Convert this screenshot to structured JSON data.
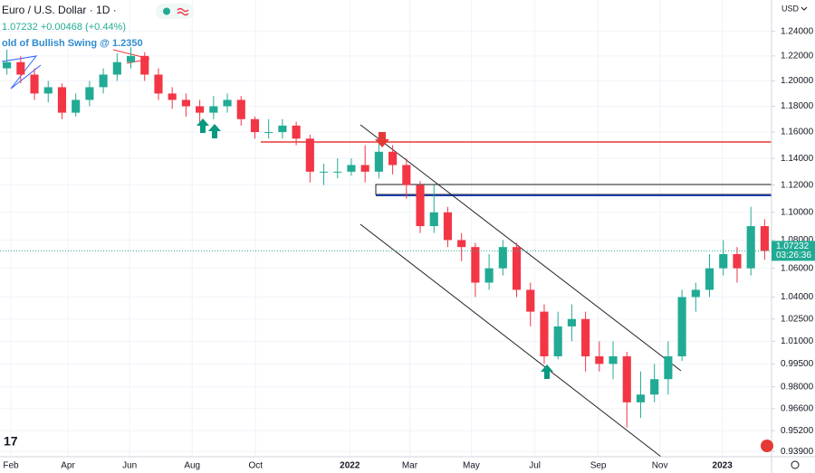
{
  "chart_data": {
    "type": "candlestick",
    "title": "Euro / U.S. Dollar · 1D ·",
    "subtitle": "1.07232 +0.00468 (+0.44%)",
    "indicator": "old of Bullish Swing @ 1.2350",
    "currency": "USD",
    "price_label": "1.07232",
    "countdown": "03:26:36",
    "up_color": "#22ab94",
    "down_color": "#f23645",
    "log_scale": true,
    "grid": true,
    "xlim": [
      0,
      56
    ],
    "xticks": [
      {
        "value": 0.79,
        "label": "Feb"
      },
      {
        "value": 4.93,
        "label": "Apr"
      },
      {
        "value": 9.41,
        "label": "Jun"
      },
      {
        "value": 13.95,
        "label": "Aug"
      },
      {
        "value": 18.55,
        "label": "Oct"
      },
      {
        "value": 25.39,
        "label": "2022"
      },
      {
        "value": 29.74,
        "label": "Mar"
      },
      {
        "value": 34.21,
        "label": "May"
      },
      {
        "value": 38.82,
        "label": "Jul"
      },
      {
        "value": 43.42,
        "label": "Sep"
      },
      {
        "value": 47.89,
        "label": "Nov"
      },
      {
        "value": 52.43,
        "label": "2023"
      }
    ],
    "ylim": [
      0.9357,
      1.266
    ],
    "yticks": [
      {
        "value": 1.24,
        "label": "1.24000"
      },
      {
        "value": 1.22,
        "label": "1.22000"
      },
      {
        "value": 1.2,
        "label": "1.20000"
      },
      {
        "value": 1.18,
        "label": "1.18000"
      },
      {
        "value": 1.16,
        "label": "1.16000"
      },
      {
        "value": 1.14,
        "label": "1.14000"
      },
      {
        "value": 1.12,
        "label": "1.12000"
      },
      {
        "value": 1.1,
        "label": "1.10000"
      },
      {
        "value": 1.08,
        "label": "1.08000"
      },
      {
        "value": 1.06,
        "label": "1.06000"
      },
      {
        "value": 1.04,
        "label": "1.04000"
      },
      {
        "value": 1.025,
        "label": "1.02500"
      },
      {
        "value": 1.01,
        "label": "1.01000"
      },
      {
        "value": 0.995,
        "label": "0.99500"
      },
      {
        "value": 0.98,
        "label": "0.98000"
      },
      {
        "value": 0.966,
        "label": "0.96600"
      },
      {
        "value": 0.952,
        "label": "0.95200"
      },
      {
        "value": 0.939,
        "label": "0.93900"
      }
    ],
    "open": [
      1.21,
      1.215,
      1.205,
      1.19,
      1.195,
      1.175,
      1.185,
      1.195,
      1.205,
      1.215,
      1.22,
      1.205,
      1.19,
      1.185,
      1.18,
      1.175,
      1.18,
      1.185,
      1.17,
      1.16,
      1.16,
      1.165,
      1.155,
      1.13,
      1.13,
      1.13,
      1.135,
      1.13,
      1.145,
      1.135,
      1.12,
      1.09,
      1.1,
      1.08,
      1.075,
      1.05,
      1.06,
      1.075,
      1.045,
      1.03,
      1.0,
      1.02,
      1.025,
      1.0,
      0.995,
      1.0,
      0.97,
      0.975,
      0.985,
      1.0,
      1.04,
      1.045,
      1.06,
      1.07,
      1.06,
      1.09
    ],
    "high": [
      1.225,
      1.22,
      1.21,
      1.2,
      1.198,
      1.19,
      1.2,
      1.21,
      1.222,
      1.227,
      1.223,
      1.21,
      1.195,
      1.19,
      1.185,
      1.188,
      1.19,
      1.188,
      1.172,
      1.17,
      1.17,
      1.168,
      1.158,
      1.136,
      1.14,
      1.14,
      1.15,
      1.152,
      1.15,
      1.14,
      1.123,
      1.12,
      1.104,
      1.085,
      1.078,
      1.07,
      1.08,
      1.078,
      1.05,
      1.035,
      1.03,
      1.035,
      1.03,
      1.01,
      1.01,
      1.003,
      0.99,
      0.995,
      1.01,
      1.045,
      1.05,
      1.07,
      1.08,
      1.075,
      1.104,
      1.095
    ],
    "low": [
      1.205,
      1.198,
      1.185,
      1.183,
      1.17,
      1.172,
      1.18,
      1.19,
      1.2,
      1.21,
      1.2,
      1.185,
      1.178,
      1.172,
      1.166,
      1.17,
      1.175,
      1.165,
      1.155,
      1.155,
      1.155,
      1.15,
      1.122,
      1.12,
      1.125,
      1.127,
      1.122,
      1.125,
      1.128,
      1.11,
      1.085,
      1.085,
      1.075,
      1.065,
      1.04,
      1.045,
      1.055,
      1.04,
      1.02,
      0.995,
      0.998,
      1.01,
      0.99,
      0.99,
      0.985,
      0.954,
      0.96,
      0.97,
      0.975,
      0.997,
      1.03,
      1.04,
      1.055,
      1.05,
      1.055,
      1.066
    ],
    "close": [
      1.215,
      1.205,
      1.19,
      1.195,
      1.175,
      1.185,
      1.195,
      1.205,
      1.215,
      1.22,
      1.205,
      1.19,
      1.185,
      1.18,
      1.175,
      1.18,
      1.185,
      1.17,
      1.16,
      1.16,
      1.165,
      1.155,
      1.13,
      1.13,
      1.13,
      1.135,
      1.13,
      1.145,
      1.135,
      1.12,
      1.09,
      1.1,
      1.08,
      1.075,
      1.05,
      1.06,
      1.075,
      1.045,
      1.03,
      1.0,
      1.02,
      1.025,
      1.0,
      0.995,
      1.0,
      0.97,
      0.975,
      0.985,
      1.0,
      1.04,
      1.045,
      1.06,
      1.07,
      1.06,
      1.09,
      1.0723
    ]
  }
}
